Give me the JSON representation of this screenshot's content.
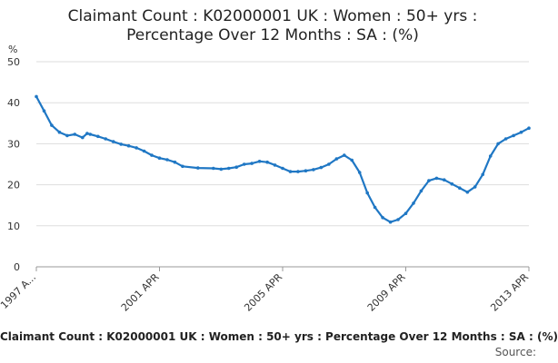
{
  "header": {
    "title_line1": "Claimant Count : K02000001 UK : Women : 50+ yrs :",
    "title_line2": "Percentage Over 12 Months : SA : (%)"
  },
  "footer": {
    "caption": "Claimant Count : K02000001 UK : Women : 50+ yrs : Percentage Over 12 Months : SA : (%)",
    "source_label": "Source:"
  },
  "colors": {
    "series": "#1f77c4",
    "grid": "#dddddd",
    "text": "#333333"
  },
  "chart_data": {
    "type": "line",
    "ylabel": "%",
    "ylim": [
      0,
      50
    ],
    "yticks": [
      0,
      10,
      20,
      30,
      40,
      50
    ],
    "xlim": [
      1997.25,
      2013.25
    ],
    "xticks": [
      {
        "value": 1997.25,
        "label": "1997 A..."
      },
      {
        "value": 2001.25,
        "label": "2001 APR"
      },
      {
        "value": 2005.25,
        "label": "2005 APR"
      },
      {
        "value": 2009.25,
        "label": "2009 APR"
      },
      {
        "value": 2013.25,
        "label": "2013 APR"
      }
    ],
    "grid": true,
    "series": [
      {
        "x": [
          1997.25,
          1997.5,
          1997.75,
          1998.0,
          1998.25,
          1998.5,
          1998.75,
          1998.9,
          1999.0,
          1999.25,
          1999.5,
          1999.75,
          2000.0,
          2000.25,
          2000.5,
          2000.75,
          2001.0,
          2001.25,
          2001.5,
          2001.75,
          2002.0,
          2002.5,
          2003.0,
          2003.25,
          2003.5,
          2003.75,
          2004.0,
          2004.25,
          2004.5,
          2004.75,
          2005.0,
          2005.25,
          2005.5,
          2005.75,
          2006.0,
          2006.25,
          2006.5,
          2006.75,
          2007.0,
          2007.25,
          2007.5,
          2007.75,
          2008.0,
          2008.25,
          2008.5,
          2008.75,
          2009.0,
          2009.25,
          2009.5,
          2009.75,
          2010.0,
          2010.25,
          2010.5,
          2010.75,
          2011.0,
          2011.25,
          2011.5,
          2011.75,
          2012.0,
          2012.25,
          2012.5,
          2012.75,
          2013.0,
          2013.25
        ],
        "values": [
          41.5,
          38,
          34.5,
          32.8,
          32,
          32.3,
          31.5,
          32.5,
          32.3,
          31.8,
          31.2,
          30.5,
          29.9,
          29.5,
          29,
          28.2,
          27.2,
          26.5,
          26.1,
          25.5,
          24.5,
          24.1,
          24,
          23.8,
          24,
          24.3,
          25,
          25.2,
          25.7,
          25.5,
          24.8,
          24,
          23.2,
          23.2,
          23.4,
          23.7,
          24.2,
          25,
          26.3,
          27.2,
          26,
          23,
          18,
          14.5,
          12,
          10.9,
          11.5,
          13,
          15.5,
          18.5,
          21,
          21.6,
          21.2,
          20.2,
          19.2,
          18.2,
          19.5,
          22.5,
          27,
          30,
          31.2,
          32,
          32.8,
          33.8
        ]
      }
    ]
  }
}
